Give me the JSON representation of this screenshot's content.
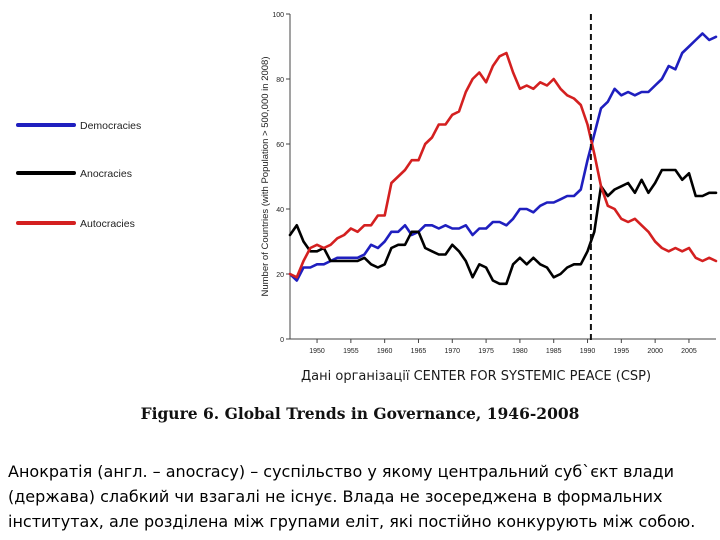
{
  "chart_data": {
    "type": "line",
    "title": "Figure 6. Global Trends in Governance, 1946-2008",
    "xlabel": "",
    "ylabel": "Number of Countries (with Population > 500,000 in 2008)",
    "xlim": [
      1946,
      2009
    ],
    "ylim": [
      0,
      100
    ],
    "x_ticks": [
      1950,
      1955,
      1960,
      1965,
      1970,
      1975,
      1980,
      1985,
      1990,
      1995,
      2000,
      2005
    ],
    "y_ticks": [
      0,
      20,
      40,
      60,
      80,
      100
    ],
    "x_tick_labels": [
      "1950",
      "1955",
      "1960",
      "1965",
      "1970",
      "1975",
      "1980",
      "1985",
      "1990",
      "1995",
      "2000",
      "2005"
    ],
    "y_tick_labels": [
      "0",
      "20",
      "40",
      "60",
      "80",
      "100"
    ],
    "grid": false,
    "legend_placement": "left",
    "annotations": [
      {
        "type": "vertical-dashed-line",
        "x": 1990.5
      }
    ],
    "series": [
      {
        "name": "Democracies",
        "color": "#1f1fbf",
        "points": [
          [
            1946,
            20
          ],
          [
            1947,
            18
          ],
          [
            1948,
            22
          ],
          [
            1949,
            22
          ],
          [
            1950,
            23
          ],
          [
            1951,
            23
          ],
          [
            1952,
            24
          ],
          [
            1953,
            25
          ],
          [
            1954,
            25
          ],
          [
            1955,
            25
          ],
          [
            1956,
            25
          ],
          [
            1957,
            26
          ],
          [
            1958,
            29
          ],
          [
            1959,
            28
          ],
          [
            1960,
            30
          ],
          [
            1961,
            33
          ],
          [
            1962,
            33
          ],
          [
            1963,
            35
          ],
          [
            1964,
            32
          ],
          [
            1965,
            33
          ],
          [
            1966,
            35
          ],
          [
            1967,
            35
          ],
          [
            1968,
            34
          ],
          [
            1969,
            35
          ],
          [
            1970,
            34
          ],
          [
            1971,
            34
          ],
          [
            1972,
            35
          ],
          [
            1973,
            32
          ],
          [
            1974,
            34
          ],
          [
            1975,
            34
          ],
          [
            1976,
            36
          ],
          [
            1977,
            36
          ],
          [
            1978,
            35
          ],
          [
            1979,
            37
          ],
          [
            1980,
            40
          ],
          [
            1981,
            40
          ],
          [
            1982,
            39
          ],
          [
            1983,
            41
          ],
          [
            1984,
            42
          ],
          [
            1985,
            42
          ],
          [
            1986,
            43
          ],
          [
            1987,
            44
          ],
          [
            1988,
            44
          ],
          [
            1989,
            46
          ],
          [
            1990,
            55
          ],
          [
            1991,
            63
          ],
          [
            1992,
            71
          ],
          [
            1993,
            73
          ],
          [
            1994,
            77
          ],
          [
            1995,
            75
          ],
          [
            1996,
            76
          ],
          [
            1997,
            75
          ],
          [
            1998,
            76
          ],
          [
            1999,
            76
          ],
          [
            2000,
            78
          ],
          [
            2001,
            80
          ],
          [
            2002,
            84
          ],
          [
            2003,
            83
          ],
          [
            2004,
            88
          ],
          [
            2005,
            90
          ],
          [
            2006,
            92
          ],
          [
            2007,
            94
          ],
          [
            2008,
            92
          ],
          [
            2009,
            93
          ]
        ]
      },
      {
        "name": "Anocracies",
        "color": "#000000",
        "points": [
          [
            1946,
            32
          ],
          [
            1947,
            35
          ],
          [
            1948,
            30
          ],
          [
            1949,
            27
          ],
          [
            1950,
            27
          ],
          [
            1951,
            28
          ],
          [
            1952,
            24
          ],
          [
            1953,
            24
          ],
          [
            1954,
            24
          ],
          [
            1955,
            24
          ],
          [
            1956,
            24
          ],
          [
            1957,
            25
          ],
          [
            1958,
            23
          ],
          [
            1959,
            22
          ],
          [
            1960,
            23
          ],
          [
            1961,
            28
          ],
          [
            1962,
            29
          ],
          [
            1963,
            29
          ],
          [
            1964,
            33
          ],
          [
            1965,
            33
          ],
          [
            1966,
            28
          ],
          [
            1967,
            27
          ],
          [
            1968,
            26
          ],
          [
            1969,
            26
          ],
          [
            1970,
            29
          ],
          [
            1971,
            27
          ],
          [
            1972,
            24
          ],
          [
            1973,
            19
          ],
          [
            1974,
            23
          ],
          [
            1975,
            22
          ],
          [
            1976,
            18
          ],
          [
            1977,
            17
          ],
          [
            1978,
            17
          ],
          [
            1979,
            23
          ],
          [
            1980,
            25
          ],
          [
            1981,
            23
          ],
          [
            1982,
            25
          ],
          [
            1983,
            23
          ],
          [
            1984,
            22
          ],
          [
            1985,
            19
          ],
          [
            1986,
            20
          ],
          [
            1987,
            22
          ],
          [
            1988,
            23
          ],
          [
            1989,
            23
          ],
          [
            1990,
            27
          ],
          [
            1991,
            33
          ],
          [
            1992,
            47
          ],
          [
            1993,
            44
          ],
          [
            1994,
            46
          ],
          [
            1995,
            47
          ],
          [
            1996,
            48
          ],
          [
            1997,
            45
          ],
          [
            1998,
            49
          ],
          [
            1999,
            45
          ],
          [
            2000,
            48
          ],
          [
            2001,
            52
          ],
          [
            2002,
            52
          ],
          [
            2003,
            52
          ],
          [
            2004,
            49
          ],
          [
            2005,
            51
          ],
          [
            2006,
            44
          ],
          [
            2007,
            44
          ],
          [
            2008,
            45
          ],
          [
            2009,
            45
          ]
        ]
      },
      {
        "name": "Autocracies",
        "color": "#d42020",
        "points": [
          [
            1946,
            20
          ],
          [
            1947,
            19
          ],
          [
            1948,
            24
          ],
          [
            1949,
            28
          ],
          [
            1950,
            29
          ],
          [
            1951,
            28
          ],
          [
            1952,
            29
          ],
          [
            1953,
            31
          ],
          [
            1954,
            32
          ],
          [
            1955,
            34
          ],
          [
            1956,
            33
          ],
          [
            1957,
            35
          ],
          [
            1958,
            35
          ],
          [
            1959,
            38
          ],
          [
            1960,
            38
          ],
          [
            1961,
            48
          ],
          [
            1962,
            50
          ],
          [
            1963,
            52
          ],
          [
            1964,
            55
          ],
          [
            1965,
            55
          ],
          [
            1966,
            60
          ],
          [
            1967,
            62
          ],
          [
            1968,
            66
          ],
          [
            1969,
            66
          ],
          [
            1970,
            69
          ],
          [
            1971,
            70
          ],
          [
            1972,
            76
          ],
          [
            1973,
            80
          ],
          [
            1974,
            82
          ],
          [
            1975,
            79
          ],
          [
            1976,
            84
          ],
          [
            1977,
            87
          ],
          [
            1978,
            88
          ],
          [
            1979,
            82
          ],
          [
            1980,
            77
          ],
          [
            1981,
            78
          ],
          [
            1982,
            77
          ],
          [
            1983,
            79
          ],
          [
            1984,
            78
          ],
          [
            1985,
            80
          ],
          [
            1986,
            77
          ],
          [
            1987,
            75
          ],
          [
            1988,
            74
          ],
          [
            1989,
            72
          ],
          [
            1990,
            66
          ],
          [
            1991,
            57
          ],
          [
            1992,
            47
          ],
          [
            1993,
            41
          ],
          [
            1994,
            40
          ],
          [
            1995,
            37
          ],
          [
            1996,
            36
          ],
          [
            1997,
            37
          ],
          [
            1998,
            35
          ],
          [
            1999,
            33
          ],
          [
            2000,
            30
          ],
          [
            2001,
            28
          ],
          [
            2002,
            27
          ],
          [
            2003,
            28
          ],
          [
            2004,
            27
          ],
          [
            2005,
            28
          ],
          [
            2006,
            25
          ],
          [
            2007,
            24
          ],
          [
            2008,
            25
          ],
          [
            2009,
            24
          ]
        ]
      }
    ]
  },
  "source_note": "Дані організації CENTER FOR SYSTEMIC PEACE  (CSP)",
  "figure_caption": "Figure 6. Global Trends in Governance, 1946-2008",
  "description": "Анократія (англ. – anocracy) – суспільство у якому центральний суб`єкт влади (держава) слабкий чи взагалі не існує. Влада не зосереджена в формальних інститутах, але розділена між групами еліт, які постійно конкурують між собою."
}
